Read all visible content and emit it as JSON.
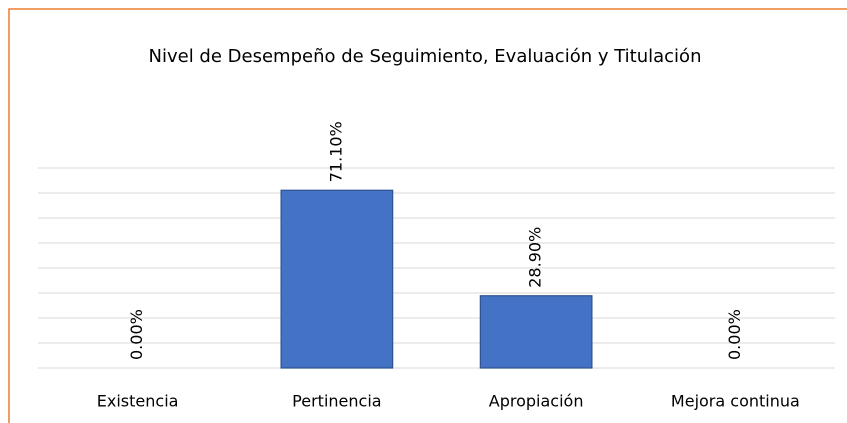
{
  "chart_data": {
    "type": "bar",
    "title": "Nivel de Desempeño de Seguimiento, Evaluación y Titulación",
    "categories": [
      "Existencia",
      "Pertinencia",
      "Apropiación",
      "Mejora continua"
    ],
    "values": [
      0,
      71.1,
      28.9,
      0
    ],
    "value_labels": [
      "0.00%",
      "71.10%",
      "28.90%",
      "0.00%"
    ],
    "color": "#4472c4",
    "ylim": [
      0,
      80
    ],
    "yticks": [
      0,
      10,
      20,
      30,
      40,
      50,
      60,
      70,
      80
    ],
    "grid": true
  }
}
